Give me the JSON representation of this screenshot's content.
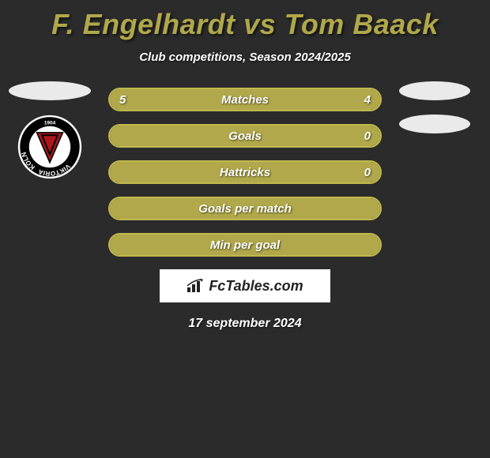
{
  "title": "F. Engelhardt vs Tom Baack",
  "subtitle": "Club competitions, Season 2024/2025",
  "date": "17 september 2024",
  "logo_text": "FcTables.com",
  "colors": {
    "accent": "#b0a84a",
    "border": "#c0b84e",
    "background": "#2b2b2b",
    "oval": "#eaeaea",
    "logo_bg": "#ffffff",
    "text": "#ffffff"
  },
  "left_badge": {
    "type": "viktoria-koln",
    "year": "1904",
    "ring_text": "VIKTORIA KÖLN",
    "outer": "#ffffff",
    "ring": "#000000",
    "center": "#b0151c",
    "letter": "V"
  },
  "bars": [
    {
      "label": "Matches",
      "left": "5",
      "right": "4",
      "left_pct": 55,
      "right_pct": 45,
      "show_vals": true,
      "full": false
    },
    {
      "label": "Goals",
      "left": "",
      "right": "0",
      "left_pct": 0,
      "right_pct": 0,
      "show_vals": true,
      "full": true
    },
    {
      "label": "Hattricks",
      "left": "",
      "right": "0",
      "left_pct": 0,
      "right_pct": 0,
      "show_vals": true,
      "full": true
    },
    {
      "label": "Goals per match",
      "left": "",
      "right": "",
      "left_pct": 0,
      "right_pct": 0,
      "show_vals": false,
      "full": true
    },
    {
      "label": "Min per goal",
      "left": "",
      "right": "",
      "left_pct": 0,
      "right_pct": 0,
      "show_vals": false,
      "full": true
    }
  ]
}
